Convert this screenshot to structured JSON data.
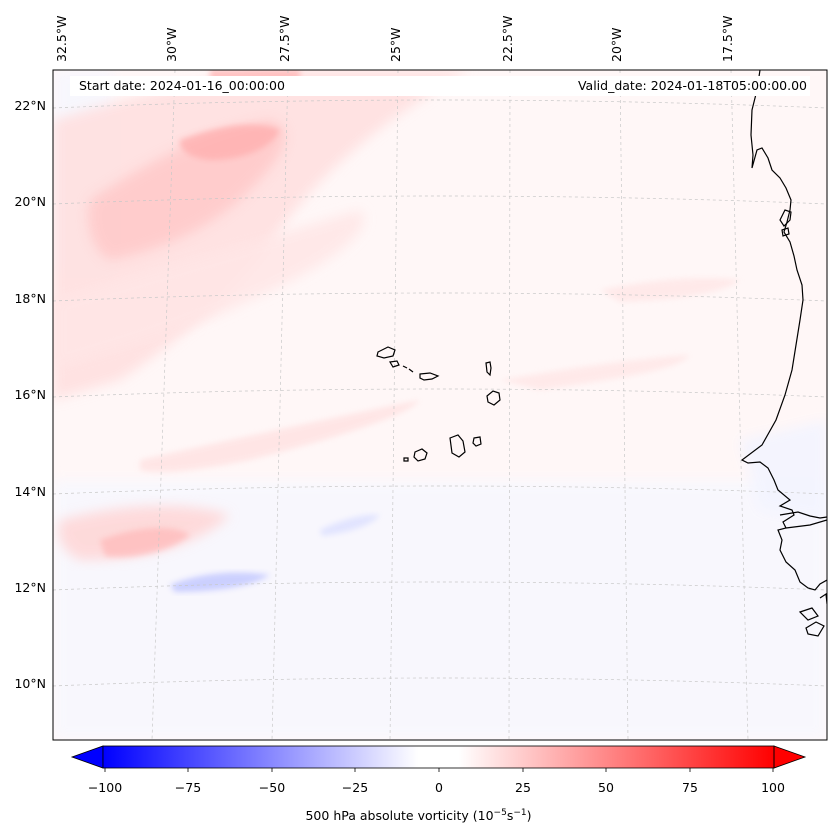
{
  "lon_labels": [
    "32.5°W",
    "30°W",
    "27.5°W",
    "25°W",
    "22.5°W",
    "20°W",
    "17.5°W"
  ],
  "lat_labels": [
    "22°N",
    "20°N",
    "18°N",
    "16°N",
    "14°N",
    "12°N",
    "10°N"
  ],
  "banner": {
    "start": "Start date: 2024-01-16_00:00:00",
    "valid": "Valid_date: 2024-01-18T05:00:00.00"
  },
  "colorbar": {
    "ticks": [
      "−100",
      "−75",
      "−50",
      "−25",
      "0",
      "25",
      "50",
      "75",
      "100"
    ],
    "label": "500 hPa absolute vorticity (10",
    "label_exp1": "−5",
    "label_mid": "s",
    "label_exp2": "−1",
    "label_end": ")",
    "range": [
      -100,
      100
    ],
    "colors": {
      "min": "#0000ff",
      "mid": "#ffffff",
      "max": "#ff0000"
    }
  }
}
